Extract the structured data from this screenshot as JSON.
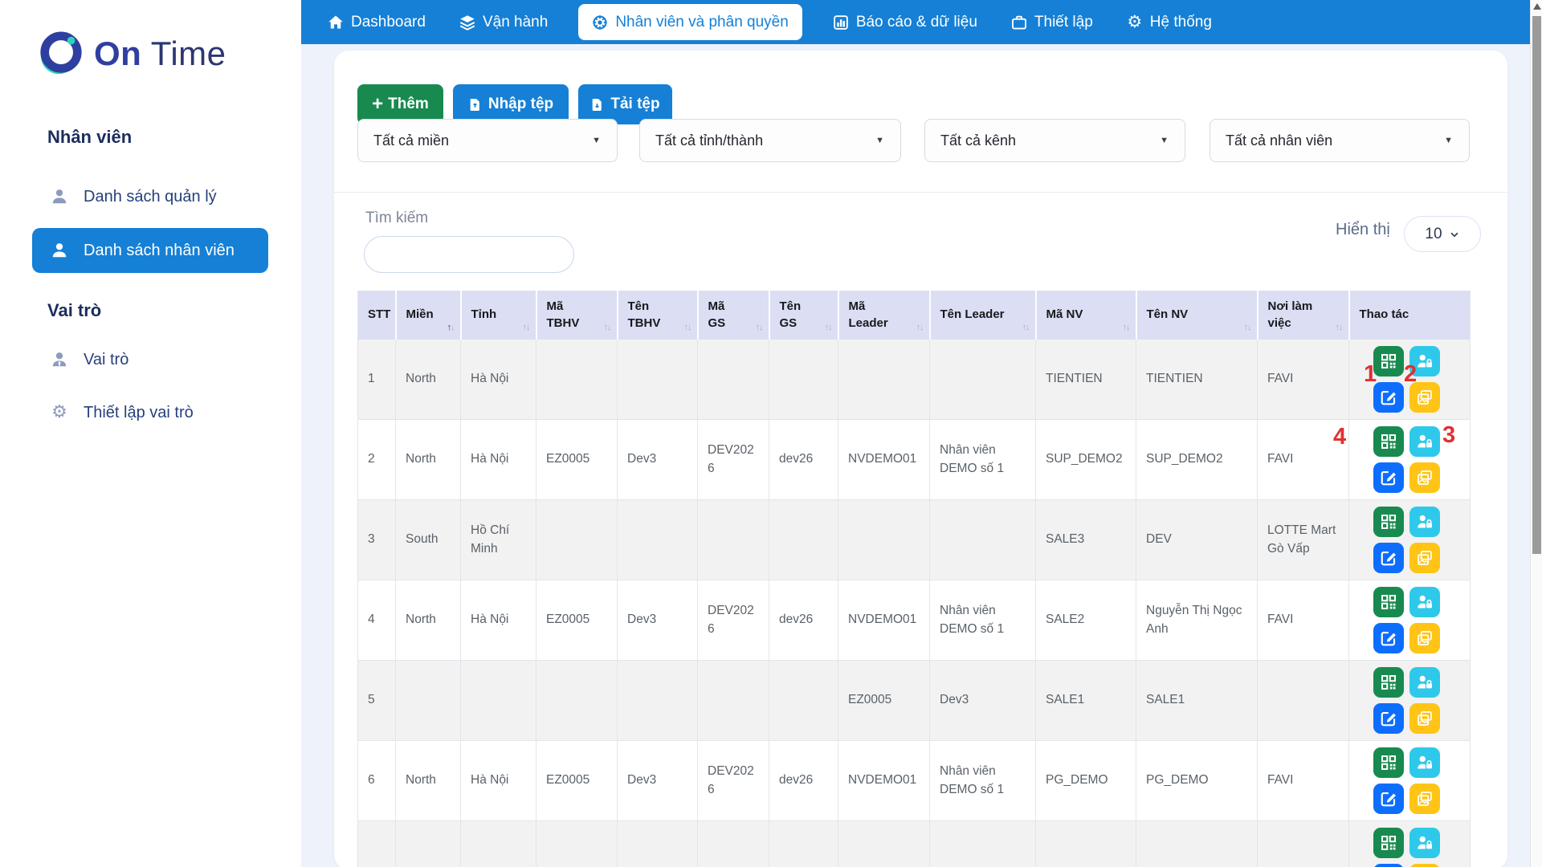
{
  "brand": {
    "name_bold": "On",
    "name_light": "Time"
  },
  "navbar": {
    "items": [
      {
        "label": "Dashboard",
        "icon": "home-icon",
        "active": false
      },
      {
        "label": "Vận hành",
        "icon": "layers-icon",
        "active": false
      },
      {
        "label": "Nhân viên và phân quyền",
        "icon": "wheel-icon",
        "active": true
      },
      {
        "label": "Báo cáo & dữ liệu",
        "icon": "bar-chart-icon",
        "active": false
      },
      {
        "label": "Thiết lập",
        "icon": "briefcase-icon",
        "active": false
      },
      {
        "label": "Hệ thống",
        "icon": "gear-icon",
        "active": false
      }
    ]
  },
  "sidebar": {
    "sections": [
      {
        "heading": "Nhân viên",
        "items": [
          {
            "label": "Danh sách quản lý",
            "icon": "person-icon",
            "active": false
          },
          {
            "label": "Danh sách nhân viên",
            "icon": "person-icon",
            "active": true
          }
        ]
      },
      {
        "heading": "Vai trò",
        "items": [
          {
            "label": "Vai trò",
            "icon": "person-tie-icon",
            "active": false
          },
          {
            "label": "Thiết lập vai trò",
            "icon": "gear-icon",
            "active": false
          }
        ]
      }
    ]
  },
  "toolbar": {
    "add_label": "Thêm",
    "import_label": "Nhập tệp",
    "export_label": "Tải tệp"
  },
  "filters": [
    {
      "value": "Tất cả miền"
    },
    {
      "value": "Tất cả tỉnh/thành"
    },
    {
      "value": "Tất cả kênh"
    },
    {
      "value": "Tất cả nhân viên"
    }
  ],
  "search": {
    "label": "Tìm kiếm",
    "value": ""
  },
  "page_size": {
    "label": "Hiển thị",
    "value": "10"
  },
  "table": {
    "columns": [
      {
        "key": "stt",
        "label": "STT",
        "sortable": false
      },
      {
        "key": "mien",
        "label": "Miền",
        "sortable": true,
        "sorted": "asc"
      },
      {
        "key": "tinh",
        "label": "Tỉnh",
        "sortable": true
      },
      {
        "key": "ma-tbhv",
        "label": "Mã\nTBHV",
        "sortable": true
      },
      {
        "key": "ten-tbhv",
        "label": "Tên\nTBHV",
        "sortable": true
      },
      {
        "key": "ma-gs",
        "label": "Mã\nGS",
        "sortable": true
      },
      {
        "key": "ten-gs",
        "label": "Tên\nGS",
        "sortable": true
      },
      {
        "key": "ma-leader",
        "label": "Mã\nLeader",
        "sortable": true
      },
      {
        "key": "ten-leader",
        "label": "Tên Leader",
        "sortable": true
      },
      {
        "key": "ma-nv",
        "label": "Mã NV",
        "sortable": true
      },
      {
        "key": "ten-nv",
        "label": "Tên NV",
        "sortable": true
      },
      {
        "key": "noi-lam-viec",
        "label": "Nơi làm\nviệc",
        "sortable": true
      },
      {
        "key": "thao-tac",
        "label": "Thao tác",
        "sortable": false
      }
    ],
    "rows": [
      {
        "cells": [
          "1",
          "North",
          "Hà Nội",
          "",
          "",
          "",
          "",
          "",
          "",
          "TIENTIEN",
          "TIENTIEN",
          "FAVI"
        ]
      },
      {
        "cells": [
          "2",
          "North",
          "Hà Nội",
          "EZ0005",
          "Dev3",
          "DEV2026",
          "dev26",
          "NVDEMO01",
          "Nhân viên DEMO số 1",
          "SUP_DEMO2",
          "SUP_DEMO2",
          "FAVI"
        ]
      },
      {
        "cells": [
          "3",
          "South",
          "Hồ Chí Minh",
          "",
          "",
          "",
          "",
          "",
          "",
          "SALE3",
          "DEV",
          "LOTTE Mart Gò Vấp"
        ]
      },
      {
        "cells": [
          "4",
          "North",
          "Hà Nội",
          "EZ0005",
          "Dev3",
          "DEV2026",
          "dev26",
          "NVDEMO01",
          "Nhân viên DEMO số 1",
          "SALE2",
          "Nguyễn Thị Ngọc Anh",
          "FAVI"
        ]
      },
      {
        "cells": [
          "5",
          "",
          "",
          "",
          "",
          "",
          "",
          "EZ0005",
          "Dev3",
          "SALE1",
          "SALE1",
          ""
        ]
      },
      {
        "cells": [
          "6",
          "North",
          "Hà Nội",
          "EZ0005",
          "Dev3",
          "DEV2026",
          "dev26",
          "NVDEMO01",
          "Nhân viên DEMO số 1",
          "PG_DEMO",
          "PG_DEMO",
          "FAVI"
        ]
      },
      {
        "cells": [
          "",
          "",
          "",
          "",
          "",
          "",
          "",
          "",
          "",
          "",
          "",
          ""
        ]
      }
    ],
    "action_buttons": [
      {
        "key": "qr-code"
      },
      {
        "key": "user-lock"
      },
      {
        "key": "edit"
      },
      {
        "key": "images"
      }
    ]
  },
  "annotations": [
    "1",
    "2",
    "3",
    "4"
  ],
  "colors": {
    "navbar_blue": "#1580d6",
    "button_green": "#188a50",
    "button_cyan": "#2ec9ea",
    "button_blue": "#0d6efd",
    "button_yellow": "#ffc415",
    "header_lavender": "#dcdff3",
    "annotation_red": "#e0312f"
  }
}
